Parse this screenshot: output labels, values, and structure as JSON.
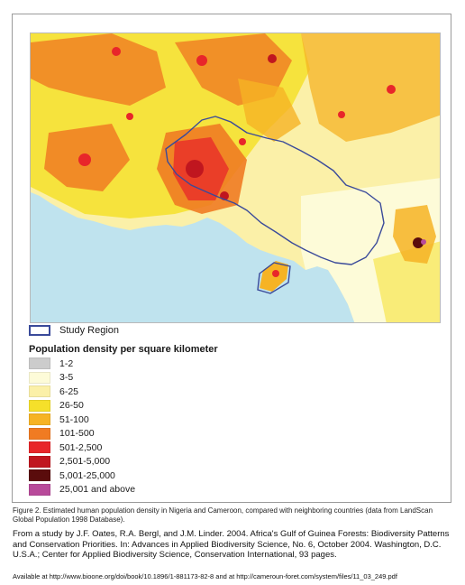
{
  "legend": {
    "study_region_label": "Study Region",
    "density_title": "Population density per square kilometer",
    "classes": [
      {
        "label": "1-2",
        "color": "#cccccc"
      },
      {
        "label": "3-5",
        "color": "#fdfbd8"
      },
      {
        "label": "6-25",
        "color": "#fbf0a8"
      },
      {
        "label": "26-50",
        "color": "#f5e02a"
      },
      {
        "label": "51-100",
        "color": "#f6b324"
      },
      {
        "label": "101-500",
        "color": "#f07b22"
      },
      {
        "label": "501-2,500",
        "color": "#e8262a"
      },
      {
        "label": "2,501-5,000",
        "color": "#c0161f"
      },
      {
        "label": "5,001-25,000",
        "color": "#5a0c0c"
      },
      {
        "label": "25,001 and above",
        "color": "#b84a9a"
      }
    ]
  },
  "colors": {
    "study_region_outline": "#3a4a9a",
    "sea": "#bfe3ee"
  },
  "caption": "Figure 2. Estimated human population density in Nigeria and Cameroon, compared with neighboring countries (data from LandScan Global Population 1998 Database).",
  "citation": "From a study by J.F. Oates, R.A. Bergl, and J.M. Linder.  2004.  Africa's Gulf of Guinea Forests: Biodiversity Patterns and Conservation Priorities. In: Advances in Applied Biodiversity Science, No. 6,  October 2004. Washington, D.C. U.S.A.; Center for Applied Biodiversity Science, Conservation International, 93 pages.",
  "available": "Available at  http://www.bioone.org/doi/book/10.1896/1-881173-82-8 and at http://cameroun-foret.com/system/files/11_03_249.pdf"
}
